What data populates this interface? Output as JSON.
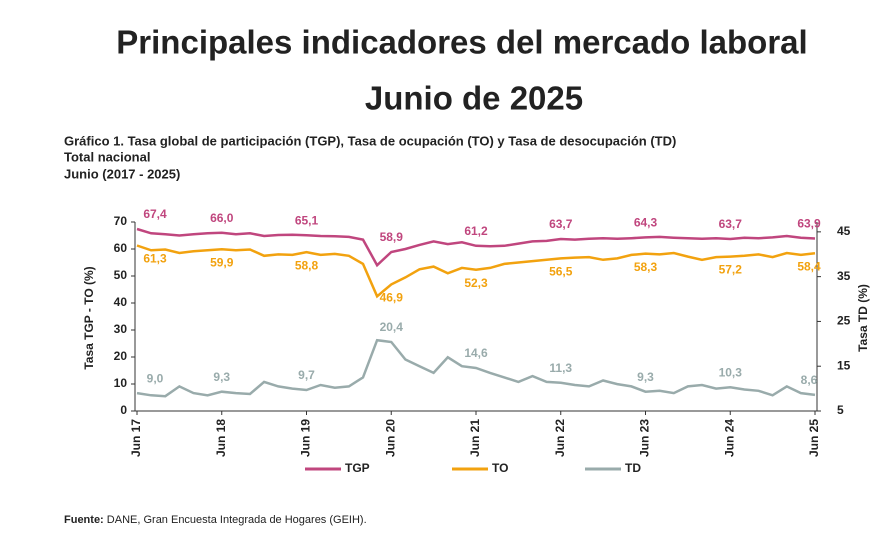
{
  "title": "Principales indicadores del mercado laboral",
  "subtitle": "Junio de 2025",
  "chart_data": {
    "type": "line",
    "title": "Gráfico 1. Tasa global de participación (TGP), Tasa de ocupación (TO) y Tasa de desocupación (TD)",
    "subtitle": [
      "Total nacional",
      "Junio (2017 - 2025)"
    ],
    "y_label": "Tasa TGP - TO (%)",
    "y2_label": "Tasa TD (%)",
    "categories": [
      "Jun 17",
      null,
      null,
      null,
      null,
      null,
      "Jun 18",
      null,
      null,
      null,
      null,
      null,
      "Jun 19",
      null,
      null,
      null,
      null,
      null,
      "Jun 20",
      null,
      null,
      null,
      null,
      null,
      "Jun 21",
      null,
      null,
      null,
      null,
      null,
      "Jun 22",
      null,
      null,
      null,
      null,
      null,
      "Jun 23",
      null,
      null,
      null,
      null,
      null,
      "Jun 24",
      null,
      null,
      null,
      null,
      null,
      "Jun 25"
    ],
    "ylim": [
      0,
      70
    ],
    "yticks": [
      0,
      10,
      20,
      30,
      40,
      50,
      60,
      70
    ],
    "y2lim": [
      5,
      47.2
    ],
    "y2ticks": [
      5,
      15,
      25,
      35,
      45
    ],
    "legend": "bottom",
    "series": [
      {
        "name": "TGP",
        "color": "#c0467e",
        "values": [
          67.4,
          65.8,
          65.5,
          65.0,
          65.5,
          65.8,
          66.0,
          65.5,
          65.8,
          64.8,
          65.2,
          65.3,
          65.1,
          64.8,
          64.7,
          64.5,
          63.5,
          54.0,
          58.9,
          60.0,
          61.5,
          62.8,
          61.8,
          62.5,
          61.2,
          61.0,
          61.2,
          62.0,
          62.8,
          63.0,
          63.7,
          63.5,
          63.8,
          64.0,
          63.8,
          64.0,
          64.3,
          64.5,
          64.2,
          64.0,
          63.8,
          64.0,
          63.7,
          64.2,
          64.0,
          64.3,
          64.8,
          64.2,
          63.9
        ],
        "value_labels": [
          "67,4",
          null,
          null,
          null,
          null,
          null,
          "66,0",
          null,
          null,
          null,
          null,
          null,
          "65,1",
          null,
          null,
          null,
          null,
          null,
          "58,9",
          null,
          null,
          null,
          null,
          null,
          "61,2",
          null,
          null,
          null,
          null,
          null,
          "63,7",
          null,
          null,
          null,
          null,
          null,
          "64,3",
          null,
          null,
          null,
          null,
          null,
          "63,7",
          null,
          null,
          null,
          null,
          null,
          "63,9"
        ]
      },
      {
        "name": "TO",
        "color": "#f2a20f",
        "values": [
          61.3,
          59.5,
          59.8,
          58.5,
          59.2,
          59.5,
          59.9,
          59.5,
          59.8,
          57.5,
          58.0,
          57.8,
          58.8,
          57.8,
          58.2,
          57.5,
          54.5,
          42.5,
          46.9,
          49.5,
          52.5,
          53.5,
          51.0,
          53.0,
          52.3,
          53.0,
          54.5,
          55.0,
          55.5,
          56.0,
          56.5,
          56.8,
          57.0,
          56.0,
          56.5,
          57.8,
          58.3,
          58.0,
          58.5,
          57.2,
          56.0,
          57.0,
          57.2,
          57.5,
          58.0,
          57.0,
          58.5,
          57.8,
          58.4
        ],
        "value_labels": [
          "61,3",
          null,
          null,
          null,
          null,
          null,
          "59,9",
          null,
          null,
          null,
          null,
          null,
          "58,8",
          null,
          null,
          null,
          null,
          null,
          "46,9",
          null,
          null,
          null,
          null,
          null,
          "52,3",
          null,
          null,
          null,
          null,
          null,
          "56,5",
          null,
          null,
          null,
          null,
          null,
          "58,3",
          null,
          null,
          null,
          null,
          null,
          "57,2",
          null,
          null,
          null,
          null,
          null,
          "58,4"
        ]
      },
      {
        "name": "TD",
        "color": "#99abab",
        "axis": "y2",
        "values": [
          9.0,
          8.5,
          8.3,
          10.5,
          9.0,
          8.5,
          9.3,
          9.0,
          8.8,
          11.5,
          10.5,
          10.0,
          9.7,
          10.8,
          10.2,
          10.5,
          12.5,
          20.8,
          20.4,
          16.5,
          15.0,
          13.5,
          17.0,
          15.0,
          14.6,
          13.5,
          12.5,
          11.5,
          12.8,
          11.5,
          11.3,
          10.8,
          10.5,
          11.8,
          11.0,
          10.5,
          9.3,
          9.5,
          9.0,
          10.5,
          10.8,
          10.0,
          10.3,
          9.8,
          9.5,
          8.5,
          10.5,
          9.0,
          8.6
        ],
        "value_labels": [
          "9,0",
          null,
          null,
          null,
          null,
          null,
          "9,3",
          null,
          null,
          null,
          null,
          null,
          "9,7",
          null,
          null,
          null,
          null,
          null,
          "20,4",
          null,
          null,
          null,
          null,
          null,
          "14,6",
          null,
          null,
          null,
          null,
          null,
          "11,3",
          null,
          null,
          null,
          null,
          null,
          "9,3",
          null,
          null,
          null,
          null,
          null,
          "10,3",
          null,
          null,
          null,
          null,
          null,
          "8,6"
        ]
      }
    ]
  },
  "source_label": "Fuente:",
  "source": "DANE, Gran Encuesta Integrada de Hogares (GEIH)."
}
